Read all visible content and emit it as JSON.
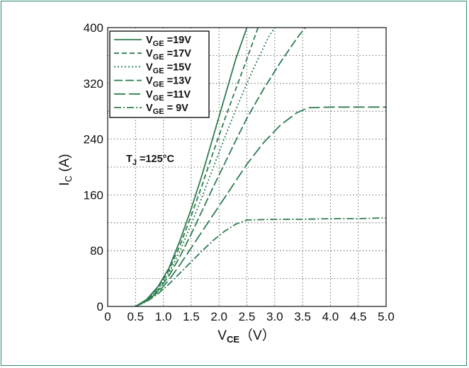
{
  "chart_data": {
    "type": "line",
    "xlim": [
      0,
      5.0
    ],
    "ylim": [
      0,
      400
    ],
    "x_ticks": [
      "0",
      "0.5",
      "1.0",
      "1.5",
      "2.0",
      "2.5",
      "3.0",
      "3.5",
      "4.0",
      "4.5",
      "5.0"
    ],
    "y_ticks": [
      "0",
      "80",
      "160",
      "240",
      "320",
      "400"
    ],
    "ylabel_main": "I",
    "ylabel_sub": "C",
    "ylabel_unit": " (A)",
    "xlabel_main": "V",
    "xlabel_sub": "CE",
    "xlabel_unit": "（V）",
    "grid": true,
    "legend_position": "top-left",
    "annotation": {
      "main": "T",
      "sub": "J",
      "rest": " =125°C"
    },
    "line_color": "#2e7d4f",
    "series": [
      {
        "name": "V",
        "sub": "GE",
        "rest": " =19V",
        "dash": "",
        "points": [
          [
            0.5,
            0
          ],
          [
            0.7,
            10
          ],
          [
            0.9,
            28
          ],
          [
            1.1,
            55
          ],
          [
            1.3,
            95
          ],
          [
            1.5,
            140
          ],
          [
            1.7,
            190
          ],
          [
            1.9,
            245
          ],
          [
            2.1,
            300
          ],
          [
            2.3,
            355
          ],
          [
            2.5,
            400
          ]
        ]
      },
      {
        "name": "V",
        "sub": "GE",
        "rest": " =17V",
        "dash": "7,4",
        "points": [
          [
            0.5,
            0
          ],
          [
            0.7,
            9
          ],
          [
            0.9,
            26
          ],
          [
            1.1,
            52
          ],
          [
            1.3,
            88
          ],
          [
            1.5,
            130
          ],
          [
            1.7,
            175
          ],
          [
            1.9,
            222
          ],
          [
            2.1,
            268
          ],
          [
            2.3,
            312
          ],
          [
            2.5,
            355
          ],
          [
            2.7,
            400
          ]
        ]
      },
      {
        "name": "V",
        "sub": "GE",
        "rest": " =15V",
        "dash": "2,3",
        "points": [
          [
            0.5,
            0
          ],
          [
            0.7,
            9
          ],
          [
            0.9,
            24
          ],
          [
            1.1,
            48
          ],
          [
            1.3,
            80
          ],
          [
            1.5,
            118
          ],
          [
            1.7,
            158
          ],
          [
            1.9,
            200
          ],
          [
            2.1,
            242
          ],
          [
            2.3,
            282
          ],
          [
            2.5,
            320
          ],
          [
            2.7,
            355
          ],
          [
            2.9,
            388
          ],
          [
            3.0,
            400
          ]
        ]
      },
      {
        "name": "V",
        "sub": "GE",
        "rest": " =13V",
        "dash": "12,4",
        "points": [
          [
            0.5,
            0
          ],
          [
            0.7,
            8
          ],
          [
            0.9,
            22
          ],
          [
            1.1,
            44
          ],
          [
            1.3,
            72
          ],
          [
            1.5,
            104
          ],
          [
            1.7,
            138
          ],
          [
            1.9,
            172
          ],
          [
            2.1,
            205
          ],
          [
            2.3,
            238
          ],
          [
            2.5,
            270
          ],
          [
            2.8,
            312
          ],
          [
            3.1,
            350
          ],
          [
            3.4,
            385
          ],
          [
            3.55,
            400
          ]
        ]
      },
      {
        "name": "V",
        "sub": "GE",
        "rest": " =11V",
        "dash": "16,5",
        "points": [
          [
            0.5,
            0
          ],
          [
            0.7,
            8
          ],
          [
            0.9,
            20
          ],
          [
            1.1,
            38
          ],
          [
            1.3,
            60
          ],
          [
            1.5,
            84
          ],
          [
            1.7,
            108
          ],
          [
            1.9,
            132
          ],
          [
            2.1,
            156
          ],
          [
            2.3,
            180
          ],
          [
            2.5,
            204
          ],
          [
            2.8,
            235
          ],
          [
            3.1,
            260
          ],
          [
            3.4,
            278
          ],
          [
            3.6,
            285
          ],
          [
            4.0,
            286
          ],
          [
            4.5,
            286
          ],
          [
            5.0,
            286
          ]
        ]
      },
      {
        "name": "V",
        "sub": "GE",
        "rest": " = 9V",
        "dash": "10,3,2,3",
        "points": [
          [
            0.5,
            0
          ],
          [
            0.7,
            7
          ],
          [
            0.9,
            18
          ],
          [
            1.1,
            32
          ],
          [
            1.3,
            48
          ],
          [
            1.5,
            64
          ],
          [
            1.7,
            80
          ],
          [
            1.9,
            95
          ],
          [
            2.1,
            108
          ],
          [
            2.3,
            118
          ],
          [
            2.5,
            124
          ],
          [
            3.0,
            125
          ],
          [
            3.5,
            125
          ],
          [
            4.0,
            126
          ],
          [
            4.5,
            126
          ],
          [
            5.0,
            127
          ]
        ]
      }
    ]
  }
}
